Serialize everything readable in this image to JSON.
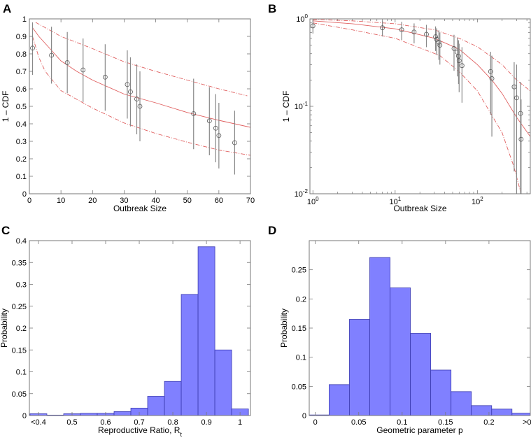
{
  "chart_data": [
    {
      "panel": "A",
      "type": "scatter",
      "xlabel": "Outbreak Size",
      "ylabel": "1 – CDF",
      "xscale": "linear",
      "yscale": "linear",
      "xlim": [
        0,
        70
      ],
      "ylim": [
        0,
        1
      ],
      "xticks": [
        0,
        10,
        20,
        30,
        40,
        50,
        60,
        70
      ],
      "xticklabels": [
        "0",
        "10",
        "20",
        "30",
        "40",
        "50",
        "60",
        "70"
      ],
      "yticks": [
        0,
        0.1,
        0.2,
        0.3,
        0.4,
        0.5,
        0.6,
        0.7,
        0.8,
        0.9,
        1
      ],
      "yticklabels": [
        "0",
        "0.1",
        "0.2",
        "0.3",
        "0.4",
        "0.5",
        "0.6",
        "0.7",
        "0.8",
        "0.9",
        "1"
      ],
      "points": [
        {
          "x": 1,
          "y": 0.833,
          "lo": 0.68,
          "hi": 0.98
        },
        {
          "x": 7,
          "y": 0.792,
          "lo": 0.63,
          "hi": 0.955
        },
        {
          "x": 12,
          "y": 0.75,
          "lo": 0.575,
          "hi": 0.925
        },
        {
          "x": 17,
          "y": 0.708,
          "lo": 0.525,
          "hi": 0.888
        },
        {
          "x": 24,
          "y": 0.667,
          "lo": 0.475,
          "hi": 0.855
        },
        {
          "x": 31,
          "y": 0.625,
          "lo": 0.43,
          "hi": 0.82
        },
        {
          "x": 32,
          "y": 0.583,
          "lo": 0.385,
          "hi": 0.78
        },
        {
          "x": 34,
          "y": 0.542,
          "lo": 0.34,
          "hi": 0.74
        },
        {
          "x": 35,
          "y": 0.5,
          "lo": 0.3,
          "hi": 0.7
        },
        {
          "x": 52,
          "y": 0.458,
          "lo": 0.255,
          "hi": 0.658
        },
        {
          "x": 57,
          "y": 0.417,
          "lo": 0.22,
          "hi": 0.61
        },
        {
          "x": 59,
          "y": 0.375,
          "lo": 0.18,
          "hi": 0.57
        },
        {
          "x": 60,
          "y": 0.333,
          "lo": 0.145,
          "hi": 0.52
        },
        {
          "x": 65,
          "y": 0.292,
          "lo": 0.11,
          "hi": 0.475
        }
      ],
      "fit": [
        [
          1,
          0.95
        ],
        [
          3,
          0.9
        ],
        [
          5,
          0.86
        ],
        [
          10,
          0.76
        ],
        [
          15,
          0.7
        ],
        [
          20,
          0.65
        ],
        [
          30,
          0.57
        ],
        [
          40,
          0.52
        ],
        [
          50,
          0.465
        ],
        [
          60,
          0.42
        ],
        [
          70,
          0.38
        ]
      ],
      "upper": [
        [
          2,
          0.98
        ],
        [
          5,
          0.95
        ],
        [
          10,
          0.9
        ],
        [
          20,
          0.83
        ],
        [
          30,
          0.755
        ],
        [
          40,
          0.7
        ],
        [
          50,
          0.65
        ],
        [
          60,
          0.6
        ],
        [
          69,
          0.56
        ]
      ],
      "lower": [
        [
          1,
          0.9
        ],
        [
          3,
          0.78
        ],
        [
          5,
          0.7
        ],
        [
          10,
          0.59
        ],
        [
          20,
          0.49
        ],
        [
          30,
          0.405
        ],
        [
          40,
          0.345
        ],
        [
          50,
          0.295
        ],
        [
          60,
          0.25
        ],
        [
          70,
          0.22
        ]
      ],
      "colors": {
        "fit": "#e06060",
        "points": "#555555",
        "errorbars": "#888888"
      }
    },
    {
      "panel": "B",
      "type": "scatter",
      "xlabel": "Outbreak Size",
      "ylabel": "1 – CDF",
      "xscale": "log",
      "yscale": "log",
      "xlim": [
        0.92,
        440
      ],
      "ylim": [
        0.01,
        1
      ],
      "xticks": [
        1,
        10,
        100
      ],
      "xticklabels": [
        [
          "10",
          "0"
        ],
        [
          "10",
          "1"
        ],
        [
          "10",
          "2"
        ]
      ],
      "yticks": [
        0.01,
        0.1,
        1
      ],
      "yticklabels": [
        [
          "10",
          "-2"
        ],
        [
          "10",
          "-1"
        ],
        [
          "10",
          "0"
        ]
      ],
      "points": [
        {
          "x": 1,
          "y": 0.833,
          "lo": 0.68,
          "hi": 0.98
        },
        {
          "x": 7,
          "y": 0.792,
          "lo": 0.63,
          "hi": 0.955
        },
        {
          "x": 12,
          "y": 0.75,
          "lo": 0.575,
          "hi": 0.925
        },
        {
          "x": 17,
          "y": 0.708,
          "lo": 0.525,
          "hi": 0.888
        },
        {
          "x": 24,
          "y": 0.667,
          "lo": 0.475,
          "hi": 0.855
        },
        {
          "x": 31,
          "y": 0.625,
          "lo": 0.43,
          "hi": 0.82
        },
        {
          "x": 32,
          "y": 0.583,
          "lo": 0.385,
          "hi": 0.78
        },
        {
          "x": 34,
          "y": 0.542,
          "lo": 0.34,
          "hi": 0.74
        },
        {
          "x": 35,
          "y": 0.5,
          "lo": 0.3,
          "hi": 0.7
        },
        {
          "x": 52,
          "y": 0.458,
          "lo": 0.255,
          "hi": 0.658
        },
        {
          "x": 57,
          "y": 0.417,
          "lo": 0.22,
          "hi": 0.61
        },
        {
          "x": 59,
          "y": 0.375,
          "lo": 0.18,
          "hi": 0.57
        },
        {
          "x": 60,
          "y": 0.333,
          "lo": 0.145,
          "hi": 0.52
        },
        {
          "x": 65,
          "y": 0.292,
          "lo": 0.11,
          "hi": 0.475
        },
        {
          "x": 145,
          "y": 0.25,
          "lo": 0.08,
          "hi": 0.42
        },
        {
          "x": 150,
          "y": 0.208,
          "lo": 0.045,
          "hi": 0.38
        },
        {
          "x": 280,
          "y": 0.167,
          "lo": 0.018,
          "hi": 0.32
        },
        {
          "x": 300,
          "y": 0.125,
          "lo": 0.01,
          "hi": 0.3
        },
        {
          "x": 335,
          "y": 0.083,
          "lo": 0.01,
          "hi": 0.19
        },
        {
          "x": 340,
          "y": 0.042,
          "lo": 0.01,
          "hi": 0.12
        }
      ],
      "fit": [
        [
          1,
          0.95
        ],
        [
          3,
          0.88
        ],
        [
          10,
          0.77
        ],
        [
          30,
          0.6
        ],
        [
          60,
          0.45
        ],
        [
          100,
          0.3
        ],
        [
          150,
          0.2
        ],
        [
          200,
          0.14
        ],
        [
          300,
          0.075
        ],
        [
          440,
          0.045
        ]
      ],
      "upper": [
        [
          1,
          0.985
        ],
        [
          3,
          0.95
        ],
        [
          10,
          0.88
        ],
        [
          30,
          0.75
        ],
        [
          60,
          0.6
        ],
        [
          100,
          0.48
        ],
        [
          200,
          0.3
        ],
        [
          300,
          0.2
        ],
        [
          440,
          0.15
        ]
      ],
      "lower": [
        [
          1,
          0.9
        ],
        [
          3,
          0.75
        ],
        [
          10,
          0.6
        ],
        [
          35,
          0.38
        ],
        [
          60,
          0.25
        ],
        [
          100,
          0.15
        ],
        [
          200,
          0.05
        ],
        [
          280,
          0.02
        ],
        [
          340,
          0.01
        ]
      ],
      "colors": {
        "fit": "#e06060",
        "points": "#555555",
        "errorbars": "#888888"
      }
    },
    {
      "panel": "C",
      "type": "bar",
      "xlabel": "Reproductive Ratio, R",
      "xlabel_sub": "t",
      "ylabel": "Probability",
      "xlim": [
        0.373,
        1.031
      ],
      "ylim": [
        0,
        0.4
      ],
      "bin_width": 0.05,
      "categories": [
        0.4,
        0.45,
        0.5,
        0.55,
        0.6,
        0.65,
        0.7,
        0.75,
        0.8,
        0.85,
        0.9,
        0.95,
        1.0
      ],
      "values": [
        0.004,
        0.001,
        0.004,
        0.005,
        0.005,
        0.009,
        0.017,
        0.044,
        0.078,
        0.277,
        0.386,
        0.15,
        0.015
      ],
      "xticks": [
        0.4,
        0.5,
        0.6,
        0.7,
        0.8,
        0.9,
        1.0
      ],
      "xticklabels": [
        "<0.4",
        "0.5",
        "0.6",
        "0.7",
        "0.8",
        "0.9",
        "1"
      ],
      "yticks": [
        0,
        0.05,
        0.1,
        0.15,
        0.2,
        0.25,
        0.3,
        0.35,
        0.4
      ],
      "yticklabels": [
        "0",
        "0.05",
        "0.1",
        "0.15",
        "0.2",
        "0.25",
        "0.3",
        "0.35",
        "0.4"
      ],
      "colors": {
        "bar": "#8080ff",
        "edge": "#3a3ab0"
      }
    },
    {
      "panel": "D",
      "type": "bar",
      "xlabel": "Geometric parameter p",
      "ylabel": "Probability",
      "xlim": [
        -0.007,
        0.2476
      ],
      "ylim": [
        0,
        0.3
      ],
      "bin_width": 0.0234,
      "categories": [
        0.0042,
        0.0276,
        0.051,
        0.0744,
        0.0978,
        0.1212,
        0.1446,
        0.168,
        0.1914,
        0.2148,
        0.2382
      ],
      "values": [
        0.001,
        0.053,
        0.165,
        0.271,
        0.219,
        0.141,
        0.078,
        0.041,
        0.017,
        0.011,
        0.004
      ],
      "xticks": [
        0,
        0.05,
        0.1,
        0.15,
        0.2,
        0.25
      ],
      "xticklabels": [
        "0",
        "0.05",
        "0.1",
        "0.15",
        "0.2",
        ">0.25"
      ],
      "yticks": [
        0,
        0.05,
        0.1,
        0.15,
        0.2,
        0.25
      ],
      "yticklabels": [
        "0",
        "0.05",
        "0.1",
        "0.15",
        "0.2",
        "0.25"
      ],
      "colors": {
        "bar": "#8080ff",
        "edge": "#3a3ab0"
      }
    }
  ]
}
